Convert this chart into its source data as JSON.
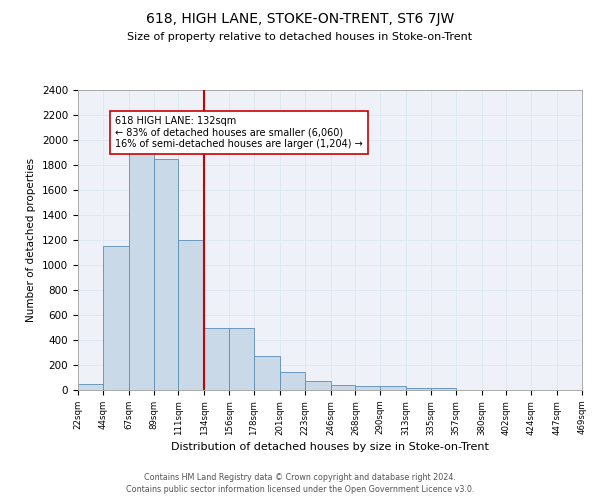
{
  "title": "618, HIGH LANE, STOKE-ON-TRENT, ST6 7JW",
  "subtitle": "Size of property relative to detached houses in Stoke-on-Trent",
  "xlabel": "Distribution of detached houses by size in Stoke-on-Trent",
  "ylabel": "Number of detached properties",
  "bar_edges": [
    22,
    44,
    67,
    89,
    111,
    134,
    156,
    178,
    201,
    223,
    246,
    268,
    290,
    313,
    335,
    357,
    380,
    402,
    424,
    447,
    469
  ],
  "bar_heights": [
    50,
    1150,
    1950,
    1850,
    1200,
    500,
    500,
    270,
    145,
    70,
    40,
    35,
    30,
    15,
    15,
    3,
    3,
    2,
    2,
    1,
    1
  ],
  "bar_color": "#c9d9e8",
  "bar_edge_color": "#5b8db8",
  "vline_x": 134,
  "vline_color": "#cc0000",
  "annotation_text": "618 HIGH LANE: 132sqm\n← 83% of detached houses are smaller (6,060)\n16% of semi-detached houses are larger (1,204) →",
  "annotation_box_color": "#ffffff",
  "annotation_box_edge_color": "#cc0000",
  "ylim": [
    0,
    2400
  ],
  "yticks": [
    0,
    200,
    400,
    600,
    800,
    1000,
    1200,
    1400,
    1600,
    1800,
    2000,
    2200,
    2400
  ],
  "grid_color": "#dde8f0",
  "background_color": "#eef2f8",
  "footer_line1": "Contains HM Land Registry data © Crown copyright and database right 2024.",
  "footer_line2": "Contains public sector information licensed under the Open Government Licence v3.0."
}
